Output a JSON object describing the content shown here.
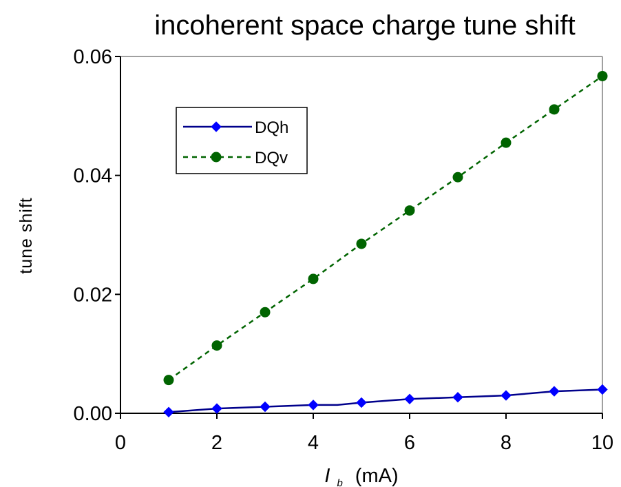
{
  "chart_data": {
    "type": "line",
    "title": "incoherent space charge tune shift",
    "xlabel_symbol": "I",
    "xlabel_subscript": "b",
    "xlabel_unit": "(mA)",
    "ylabel": "tune shift",
    "xlim": [
      0,
      10
    ],
    "ylim": [
      0,
      0.06
    ],
    "xticks": [
      0,
      2,
      4,
      6,
      8,
      10
    ],
    "xtick_labels": [
      "0",
      "2",
      "4",
      "6",
      "8",
      "10"
    ],
    "yticks": [
      0,
      0.02,
      0.04,
      0.06
    ],
    "ytick_labels": [
      "0.00",
      "0.02",
      "0.04",
      "0.06"
    ],
    "grid": false,
    "legend_placement": "upper-left",
    "series": [
      {
        "name": "DQh",
        "color": "#00008B",
        "marker_color": "#0000FF",
        "marker": "diamond",
        "line_style": "solid",
        "x": [
          1,
          2,
          3,
          4,
          4.5,
          5,
          6,
          7,
          8,
          9,
          10
        ],
        "y": [
          0.0002,
          0.0008,
          0.0011,
          0.0014,
          0.0014,
          0.0018,
          0.0024,
          0.0027,
          0.003,
          0.0037,
          0.004
        ],
        "marker_x": [
          1,
          2,
          3,
          4,
          5,
          6,
          7,
          8,
          9,
          10
        ],
        "marker_y": [
          0.0002,
          0.0008,
          0.0011,
          0.0014,
          0.0018,
          0.0024,
          0.0027,
          0.003,
          0.0037,
          0.004
        ]
      },
      {
        "name": "DQv",
        "color": "#006400",
        "marker_color": "#006400",
        "marker": "circle",
        "line_style": "dashed",
        "x": [
          1,
          2,
          3,
          4,
          5,
          6,
          7,
          8,
          9,
          10
        ],
        "y": [
          0.0056,
          0.0114,
          0.017,
          0.0226,
          0.0285,
          0.0341,
          0.0397,
          0.0455,
          0.0511,
          0.0567
        ],
        "marker_x": [
          1,
          2,
          3,
          4,
          5,
          6,
          7,
          8,
          9,
          10
        ],
        "marker_y": [
          0.0056,
          0.0114,
          0.017,
          0.0226,
          0.0285,
          0.0341,
          0.0397,
          0.0455,
          0.0511,
          0.0567
        ]
      }
    ]
  }
}
